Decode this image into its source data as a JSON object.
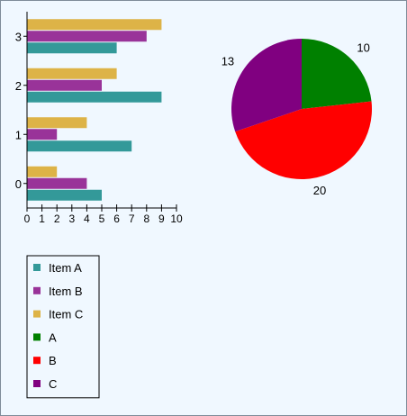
{
  "chart_data": [
    {
      "type": "bar",
      "orientation": "horizontal",
      "categories": [
        "0",
        "1",
        "2",
        "3"
      ],
      "series": [
        {
          "name": "Item A",
          "color": "#339999",
          "values": [
            5,
            7,
            9,
            6
          ]
        },
        {
          "name": "Item B",
          "color": "#993399",
          "values": [
            4,
            2,
            5,
            8
          ]
        },
        {
          "name": "Item C",
          "color": "#ddb347",
          "values": [
            2,
            4,
            6,
            9
          ]
        }
      ],
      "xlim": [
        0,
        10
      ],
      "xticks": [
        "0",
        "1",
        "2",
        "3",
        "4",
        "5",
        "6",
        "7",
        "8",
        "9",
        "10"
      ],
      "grid": false
    },
    {
      "type": "pie",
      "slices": [
        {
          "name": "A",
          "value": 10,
          "label": "10",
          "color": "#008000"
        },
        {
          "name": "B",
          "value": 20,
          "label": "20",
          "color": "#ff0000"
        },
        {
          "name": "C",
          "value": 13,
          "label": "13",
          "color": "#800080"
        }
      ]
    }
  ],
  "legend": {
    "placement": "bottom-left",
    "items": [
      {
        "label": "Item A",
        "color": "#339999"
      },
      {
        "label": "Item B",
        "color": "#993399"
      },
      {
        "label": "Item C",
        "color": "#ddb347"
      },
      {
        "label": "A",
        "color": "#008000"
      },
      {
        "label": "B",
        "color": "#ff0000"
      },
      {
        "label": "C",
        "color": "#800080"
      }
    ]
  }
}
